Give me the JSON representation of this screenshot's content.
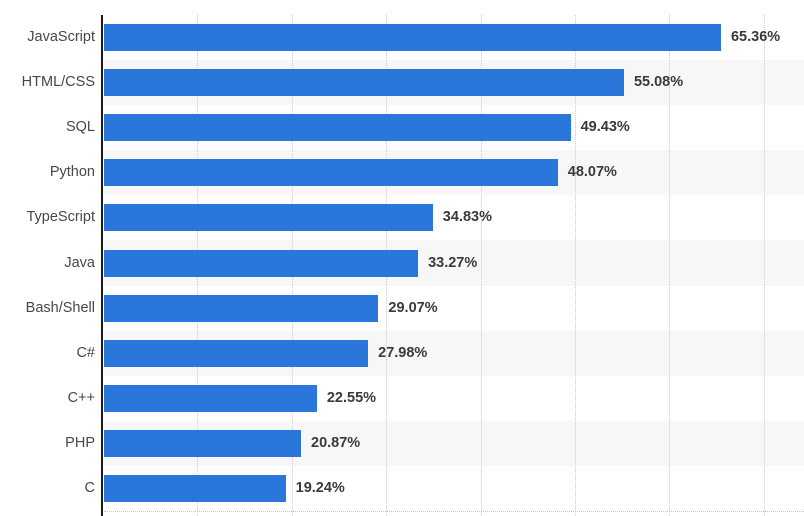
{
  "chart_data": {
    "type": "bar",
    "orientation": "horizontal",
    "title": "",
    "xlabel": "",
    "ylabel": "",
    "categories": [
      "JavaScript",
      "HTML/CSS",
      "SQL",
      "Python",
      "TypeScript",
      "Java",
      "Bash/Shell",
      "C#",
      "C++",
      "PHP",
      "C"
    ],
    "values": [
      65.36,
      55.08,
      49.43,
      48.07,
      34.83,
      33.27,
      29.07,
      27.98,
      22.55,
      20.87,
      19.24
    ],
    "value_labels": [
      "65.36%",
      "55.08%",
      "49.43%",
      "48.07%",
      "34.83%",
      "33.27%",
      "29.07%",
      "27.98%",
      "22.55%",
      "20.87%",
      "19.24%"
    ],
    "xlim": [
      0,
      74.2
    ],
    "gridlines_percent": [
      10,
      20,
      30,
      40,
      50,
      60,
      70
    ],
    "grid": "vertical-dotted",
    "legend": "none",
    "row_striping": "alternate-light-gray",
    "colors": {
      "bar": "#2b76db",
      "stripe": "#f7f7f7",
      "gridline": "#cccccc",
      "axis": "#1b1b1b",
      "category_label": "#474747",
      "value_label": "#3a3a3a"
    }
  }
}
